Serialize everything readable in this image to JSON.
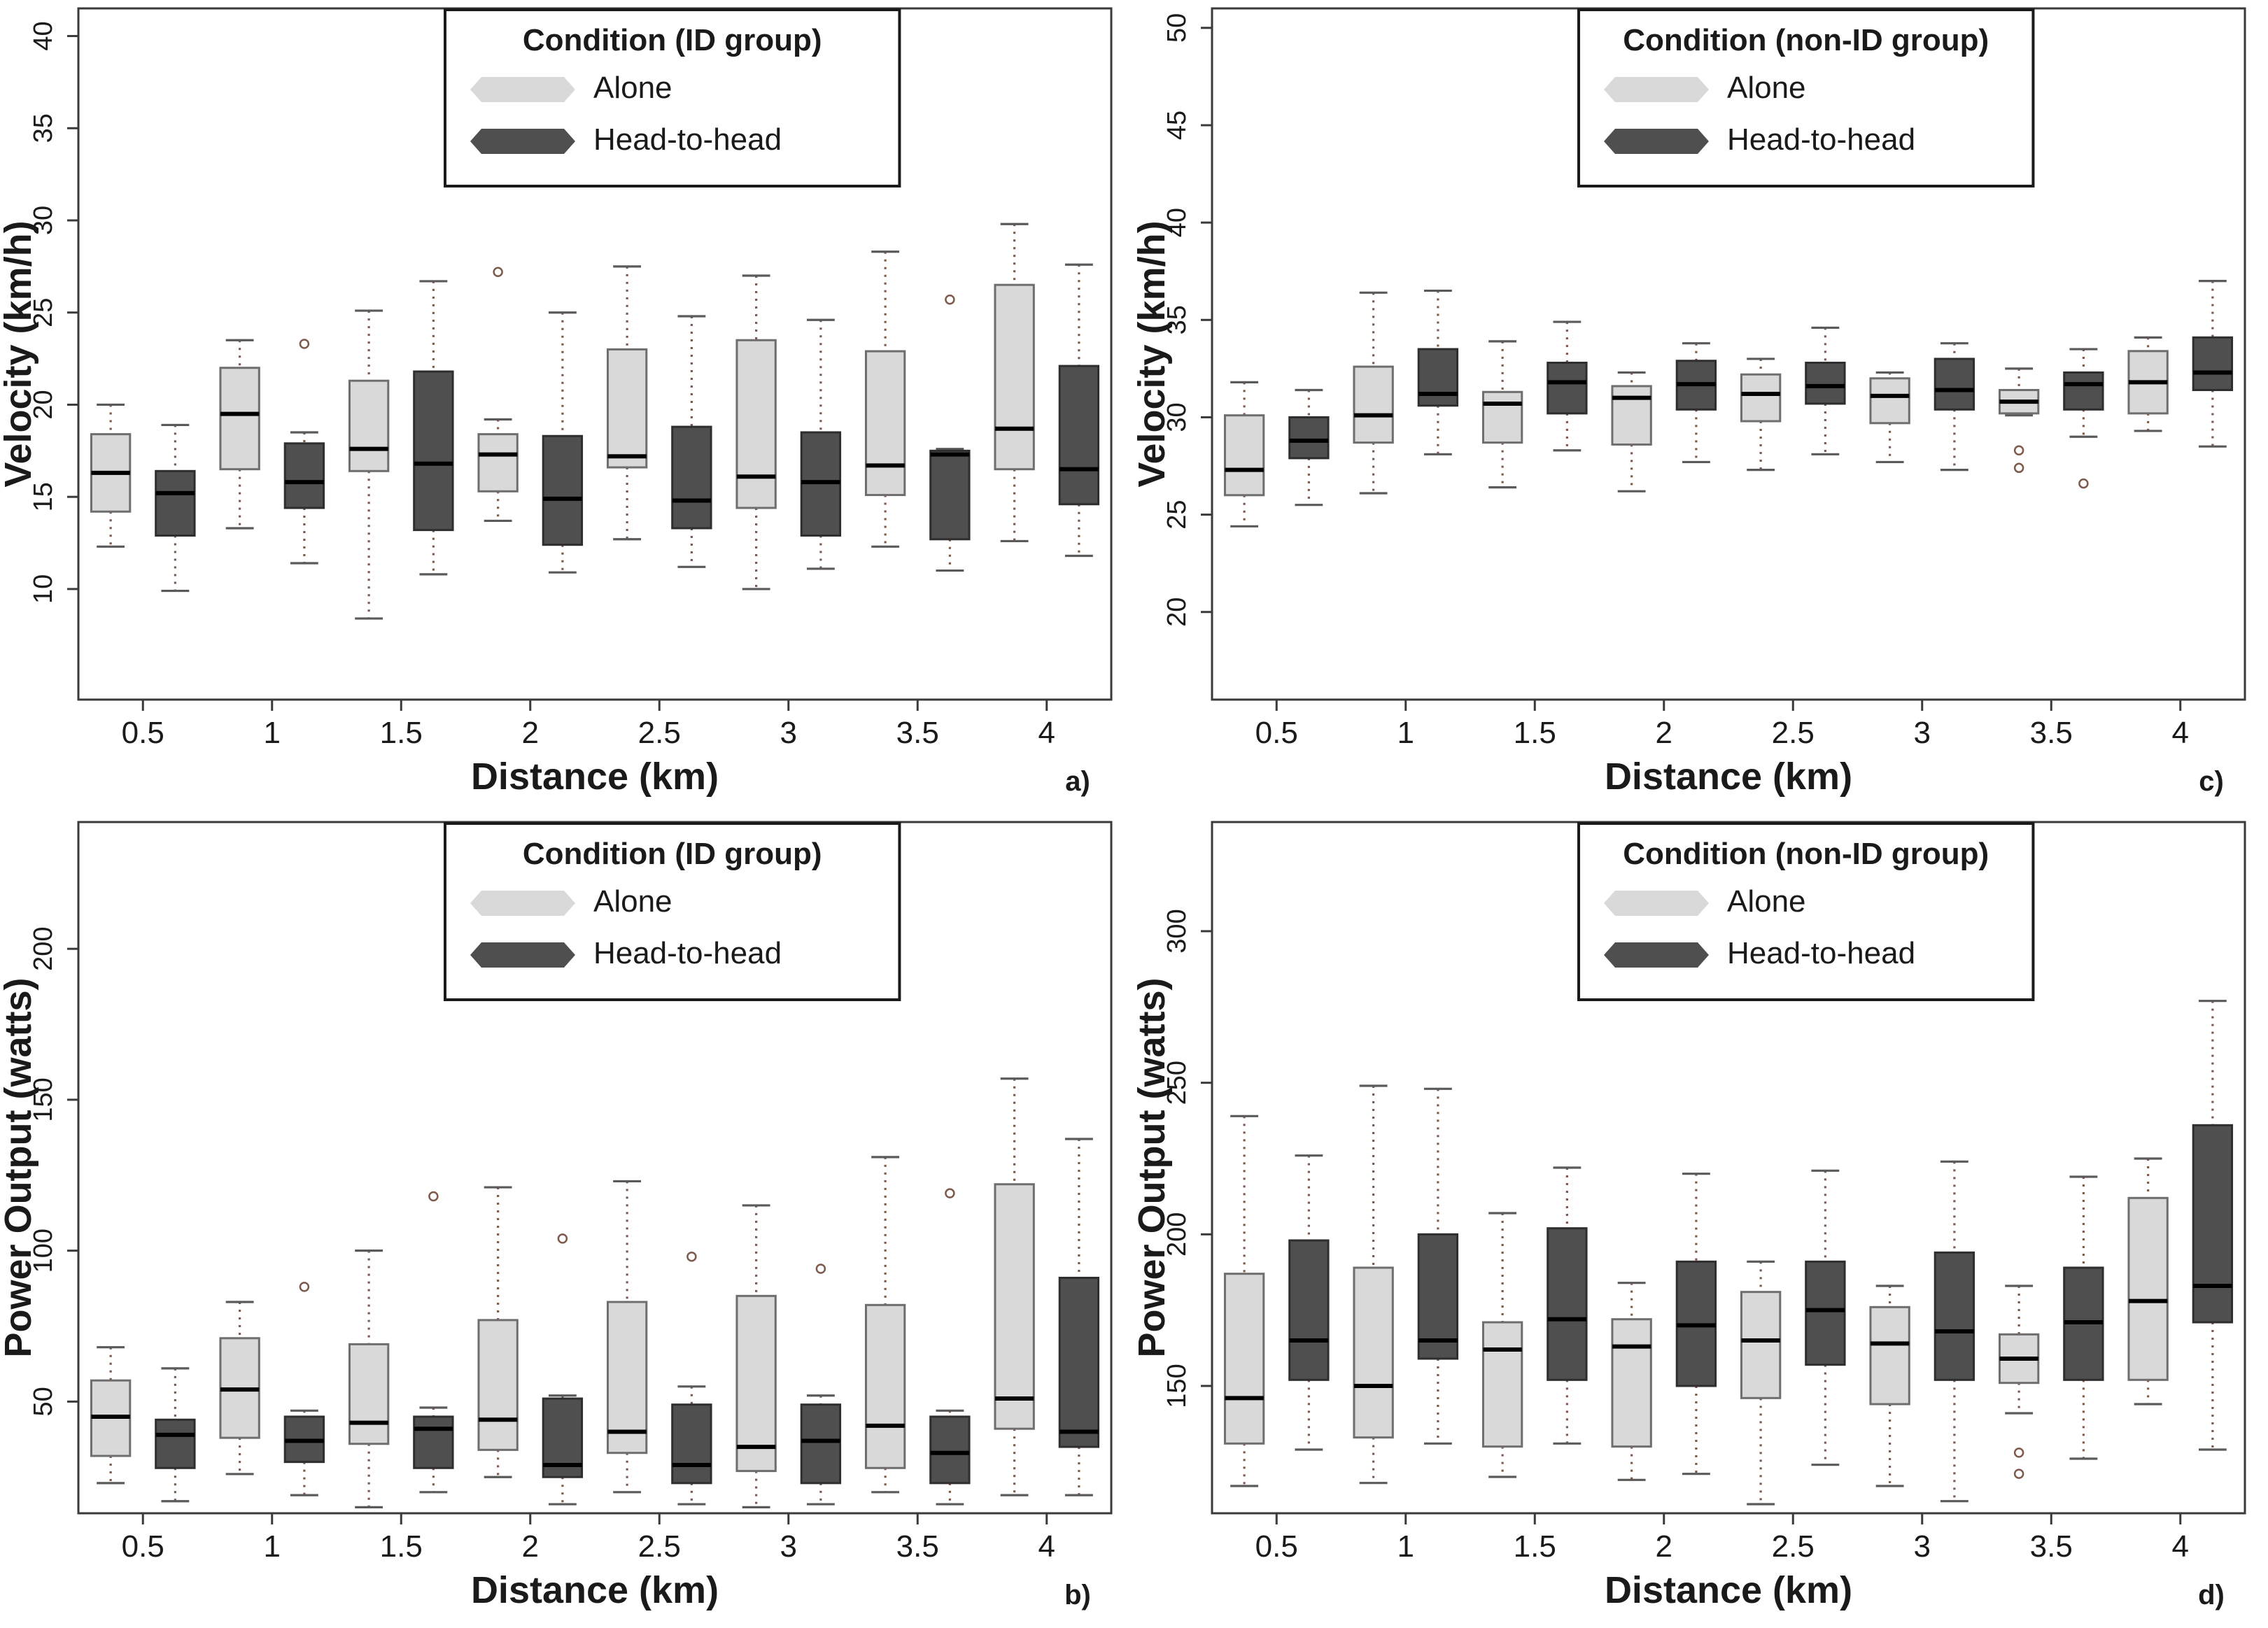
{
  "figure_title": "",
  "legend_items": [
    "Alone",
    "Head-to-head"
  ],
  "colors": {
    "alone_fill": "#d9d9d9",
    "alone_border": "#6e6e6e",
    "head_fill": "#4f4f4f",
    "head_border": "#2e2e2e",
    "median": "#000000",
    "whisker_dotted": "#7d5a4c",
    "whisker_cap": "#5a5a5a",
    "axis": "#3a3a3a",
    "text": "#1a1a1a"
  },
  "chart_data": [
    {
      "id": "a",
      "type": "bar",
      "subtype": "grouped-boxplot",
      "corner_label": "a)",
      "ylabel": "Velocity (km/h)",
      "xlabel": "Distance (km)",
      "legend_title": "Condition (ID group)",
      "legend_position": "top-center",
      "grid": false,
      "ylim": [
        4,
        41.5
      ],
      "yticks": [
        10,
        15,
        20,
        25,
        30,
        35,
        40
      ],
      "categories": [
        "0.5",
        "1",
        "1.5",
        "2",
        "2.5",
        "3",
        "3.5",
        "4"
      ],
      "series": [
        {
          "name": "Alone",
          "key": "alone",
          "boxes": [
            {
              "w": [
                12.3,
                14.2,
                16.3,
                18.4,
                20.0
              ],
              "o": []
            },
            {
              "w": [
                13.3,
                16.5,
                19.5,
                22.0,
                23.5
              ],
              "o": []
            },
            {
              "w": [
                8.4,
                16.4,
                17.6,
                21.3,
                25.1
              ],
              "o": []
            },
            {
              "w": [
                13.7,
                15.3,
                17.3,
                18.4,
                19.2
              ],
              "o": [
                27.2
              ]
            },
            {
              "w": [
                12.7,
                16.6,
                17.2,
                23.0,
                27.5
              ],
              "o": []
            },
            {
              "w": [
                10.0,
                14.4,
                16.1,
                23.5,
                27.0
              ],
              "o": []
            },
            {
              "w": [
                12.3,
                15.1,
                16.7,
                22.9,
                28.3
              ],
              "o": []
            },
            {
              "w": [
                12.6,
                16.5,
                18.7,
                26.5,
                29.8
              ],
              "o": []
            }
          ]
        },
        {
          "name": "Head-to-head",
          "key": "head",
          "boxes": [
            {
              "w": [
                9.9,
                12.9,
                15.2,
                16.4,
                18.9
              ],
              "o": []
            },
            {
              "w": [
                11.4,
                14.4,
                15.8,
                17.9,
                18.5
              ],
              "o": [
                23.3
              ]
            },
            {
              "w": [
                10.8,
                13.2,
                16.8,
                21.8,
                26.7
              ],
              "o": []
            },
            {
              "w": [
                10.9,
                12.4,
                14.9,
                18.3,
                25.0
              ],
              "o": []
            },
            {
              "w": [
                11.2,
                13.3,
                14.8,
                18.8,
                24.8
              ],
              "o": []
            },
            {
              "w": [
                11.1,
                12.9,
                15.8,
                18.5,
                24.6
              ],
              "o": []
            },
            {
              "w": [
                11.0,
                12.7,
                17.3,
                17.5,
                17.6
              ],
              "o": [
                25.7
              ]
            },
            {
              "w": [
                11.8,
                14.6,
                16.5,
                22.1,
                27.6
              ],
              "o": []
            }
          ]
        }
      ]
    },
    {
      "id": "c",
      "type": "bar",
      "subtype": "grouped-boxplot",
      "corner_label": "c)",
      "ylabel": "Velocity (km/h)",
      "xlabel": "Distance (km)",
      "legend_title": "Condition (non-ID group)",
      "legend_position": "top-center",
      "grid": false,
      "ylim": [
        15.5,
        51
      ],
      "yticks": [
        20,
        25,
        30,
        35,
        40,
        45,
        50
      ],
      "categories": [
        "0.5",
        "1",
        "1.5",
        "2",
        "2.5",
        "3",
        "3.5",
        "4"
      ],
      "series": [
        {
          "name": "Alone",
          "key": "alone",
          "boxes": [
            {
              "w": [
                24.4,
                26.0,
                27.3,
                30.1,
                31.8
              ],
              "o": []
            },
            {
              "w": [
                26.1,
                28.7,
                30.1,
                32.6,
                36.4
              ],
              "o": []
            },
            {
              "w": [
                26.4,
                28.7,
                30.7,
                31.3,
                33.9
              ],
              "o": []
            },
            {
              "w": [
                26.2,
                28.6,
                31.0,
                31.6,
                32.3
              ],
              "o": []
            },
            {
              "w": [
                27.3,
                29.8,
                31.2,
                32.2,
                33.0
              ],
              "o": []
            },
            {
              "w": [
                27.7,
                29.7,
                31.1,
                32.0,
                32.3
              ],
              "o": []
            },
            {
              "w": [
                30.1,
                30.2,
                30.8,
                31.4,
                32.5
              ],
              "o": [
                28.3,
                27.4
              ]
            },
            {
              "w": [
                29.3,
                30.2,
                31.8,
                33.4,
                34.1
              ],
              "o": []
            }
          ]
        },
        {
          "name": "Head-to-head",
          "key": "head",
          "boxes": [
            {
              "w": [
                25.5,
                27.9,
                28.8,
                30.0,
                31.4
              ],
              "o": []
            },
            {
              "w": [
                28.1,
                30.6,
                31.2,
                33.5,
                36.5
              ],
              "o": []
            },
            {
              "w": [
                28.3,
                30.2,
                31.8,
                32.8,
                34.9
              ],
              "o": []
            },
            {
              "w": [
                27.7,
                30.4,
                31.7,
                32.9,
                33.8
              ],
              "o": []
            },
            {
              "w": [
                28.1,
                30.7,
                31.6,
                32.8,
                34.6
              ],
              "o": []
            },
            {
              "w": [
                27.3,
                30.4,
                31.4,
                33.0,
                33.8
              ],
              "o": []
            },
            {
              "w": [
                29.0,
                30.4,
                31.7,
                32.3,
                33.5
              ],
              "o": [
                26.6
              ]
            },
            {
              "w": [
                28.5,
                31.4,
                32.3,
                34.1,
                37.0
              ],
              "o": []
            }
          ]
        }
      ]
    },
    {
      "id": "b",
      "type": "bar",
      "subtype": "grouped-boxplot",
      "corner_label": "b)",
      "ylabel": "Power Output (watts)",
      "xlabel": "Distance (km)",
      "legend_title": "Condition (ID group)",
      "legend_position": "top-center",
      "grid": false,
      "ylim": [
        13,
        242
      ],
      "yticks": [
        50,
        100,
        150,
        200
      ],
      "categories": [
        "0.5",
        "1",
        "1.5",
        "2",
        "2.5",
        "3",
        "3.5",
        "4"
      ],
      "series": [
        {
          "name": "Alone",
          "key": "alone",
          "boxes": [
            {
              "w": [
                23,
                32,
                45,
                57,
                68
              ],
              "o": []
            },
            {
              "w": [
                26,
                38,
                54,
                71,
                83
              ],
              "o": []
            },
            {
              "w": [
                15,
                36,
                43,
                69,
                100
              ],
              "o": []
            },
            {
              "w": [
                25,
                34,
                44,
                77,
                121
              ],
              "o": []
            },
            {
              "w": [
                20,
                33,
                40,
                83,
                123
              ],
              "o": []
            },
            {
              "w": [
                15,
                27,
                35,
                85,
                115
              ],
              "o": []
            },
            {
              "w": [
                20,
                28,
                42,
                82,
                131
              ],
              "o": []
            },
            {
              "w": [
                19,
                41,
                51,
                122,
                157
              ],
              "o": []
            }
          ]
        },
        {
          "name": "Head-to-head",
          "key": "head",
          "boxes": [
            {
              "w": [
                17,
                28,
                39,
                44,
                61
              ],
              "o": []
            },
            {
              "w": [
                19,
                30,
                37,
                45,
                47
              ],
              "o": [
                88
              ]
            },
            {
              "w": [
                20,
                28,
                41,
                45,
                48
              ],
              "o": [
                118
              ]
            },
            {
              "w": [
                16,
                25,
                29,
                51,
                52
              ],
              "o": [
                104
              ]
            },
            {
              "w": [
                16,
                23,
                29,
                49,
                55
              ],
              "o": [
                98
              ]
            },
            {
              "w": [
                16,
                23,
                37,
                49,
                52
              ],
              "o": [
                94
              ]
            },
            {
              "w": [
                16,
                23,
                33,
                45,
                47
              ],
              "o": [
                119
              ]
            },
            {
              "w": [
                19,
                35,
                40,
                91,
                137
              ],
              "o": []
            }
          ]
        }
      ]
    },
    {
      "id": "d",
      "type": "bar",
      "subtype": "grouped-boxplot",
      "corner_label": "d)",
      "ylabel": "Power Output (watts)",
      "xlabel": "Distance (km)",
      "legend_title": "Condition (non-ID group)",
      "legend_position": "top-center",
      "grid": false,
      "ylim": [
        108,
        336
      ],
      "yticks": [
        150,
        200,
        250,
        300
      ],
      "categories": [
        "0.5",
        "1",
        "1.5",
        "2",
        "2.5",
        "3",
        "3.5",
        "4"
      ],
      "series": [
        {
          "name": "Alone",
          "key": "alone",
          "boxes": [
            {
              "w": [
                117,
                131,
                146,
                187,
                239
              ],
              "o": []
            },
            {
              "w": [
                118,
                133,
                150,
                189,
                249
              ],
              "o": []
            },
            {
              "w": [
                120,
                130,
                162,
                171,
                207
              ],
              "o": []
            },
            {
              "w": [
                119,
                130,
                163,
                172,
                184
              ],
              "o": []
            },
            {
              "w": [
                111,
                146,
                165,
                181,
                191
              ],
              "o": []
            },
            {
              "w": [
                117,
                144,
                164,
                176,
                183
              ],
              "o": []
            },
            {
              "w": [
                141,
                151,
                159,
                167,
                183
              ],
              "o": [
                128,
                121
              ]
            },
            {
              "w": [
                144,
                152,
                178,
                212,
                225
              ],
              "o": []
            }
          ]
        },
        {
          "name": "Head-to-head",
          "key": "head",
          "boxes": [
            {
              "w": [
                129,
                152,
                165,
                198,
                226
              ],
              "o": []
            },
            {
              "w": [
                131,
                159,
                165,
                200,
                248
              ],
              "o": []
            },
            {
              "w": [
                131,
                152,
                172,
                202,
                222
              ],
              "o": []
            },
            {
              "w": [
                121,
                150,
                170,
                191,
                220
              ],
              "o": []
            },
            {
              "w": [
                124,
                157,
                175,
                191,
                221
              ],
              "o": []
            },
            {
              "w": [
                112,
                152,
                168,
                194,
                224
              ],
              "o": []
            },
            {
              "w": [
                126,
                152,
                171,
                189,
                219
              ],
              "o": []
            },
            {
              "w": [
                129,
                171,
                183,
                236,
                277
              ],
              "o": []
            }
          ]
        }
      ]
    }
  ]
}
